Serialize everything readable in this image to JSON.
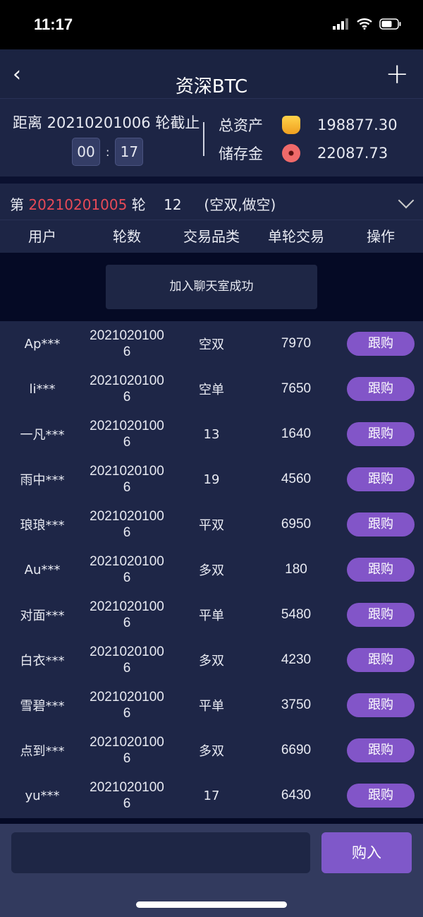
{
  "status_bar": {
    "time": "11:17"
  },
  "nav": {
    "title": "资深BTC",
    "back_icon": "chevron-left-icon",
    "add_icon": "plus-icon"
  },
  "info": {
    "deadline": "距离 20210201006 轮截止",
    "timer_min": "00",
    "timer_sep": ":",
    "timer_sec": "17",
    "total_assets_label": "总资产",
    "total_assets_value": "198877.30",
    "total_assets_icon": "gold-ingot-icon",
    "savings_label": "储存金",
    "savings_value": "22087.73",
    "savings_icon": "coin-icon"
  },
  "round": {
    "prefix": "第",
    "number": "20210201005",
    "suffix": "轮",
    "result": "12",
    "detail": "(空双,做空)",
    "accent": "#e84a57"
  },
  "table": {
    "headers": [
      "用户",
      "轮数",
      "交易品类",
      "单轮交易",
      "操作"
    ],
    "rows": [
      {
        "user": "Ap***",
        "round": "20210201006",
        "type": "空双",
        "amount": "7970",
        "action": "跟购"
      },
      {
        "user": "li***",
        "round": "20210201006",
        "type": "空单",
        "amount": "7650",
        "action": "跟购"
      },
      {
        "user": "一凡***",
        "round": "20210201006",
        "type": "13",
        "amount": "1640",
        "action": "跟购"
      },
      {
        "user": "雨中***",
        "round": "20210201006",
        "type": "19",
        "amount": "4560",
        "action": "跟购"
      },
      {
        "user": "琅琅***",
        "round": "20210201006",
        "type": "平双",
        "amount": "6950",
        "action": "跟购"
      },
      {
        "user": "Au***",
        "round": "20210201006",
        "type": "多双",
        "amount": "180",
        "action": "跟购"
      },
      {
        "user": "对面***",
        "round": "20210201006",
        "type": "平单",
        "amount": "5480",
        "action": "跟购"
      },
      {
        "user": "白衣***",
        "round": "20210201006",
        "type": "多双",
        "amount": "4230",
        "action": "跟购"
      },
      {
        "user": "雪碧***",
        "round": "20210201006",
        "type": "平单",
        "amount": "3750",
        "action": "跟购"
      },
      {
        "user": "点到***",
        "round": "20210201006",
        "type": "多双",
        "amount": "6690",
        "action": "跟购"
      },
      {
        "user": "yu***",
        "round": "20210201006",
        "type": "17",
        "amount": "6430",
        "action": "跟购"
      }
    ]
  },
  "chat": {
    "message": "加入聊天室成功"
  },
  "bottom": {
    "input_value": "",
    "buy_label": "购入",
    "accent": "#7f58c9"
  }
}
